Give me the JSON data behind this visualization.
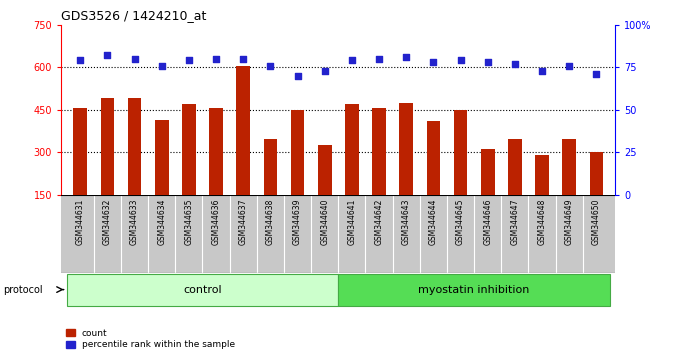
{
  "title": "GDS3526 / 1424210_at",
  "categories": [
    "GSM344631",
    "GSM344632",
    "GSM344633",
    "GSM344634",
    "GSM344635",
    "GSM344636",
    "GSM344637",
    "GSM344638",
    "GSM344639",
    "GSM344640",
    "GSM344641",
    "GSM344642",
    "GSM344643",
    "GSM344644",
    "GSM344645",
    "GSM344646",
    "GSM344647",
    "GSM344648",
    "GSM344649",
    "GSM344650"
  ],
  "bar_values": [
    455,
    490,
    490,
    415,
    470,
    455,
    605,
    345,
    450,
    325,
    470,
    455,
    475,
    410,
    450,
    310,
    345,
    290,
    345,
    300
  ],
  "dot_values": [
    79,
    82,
    80,
    76,
    79,
    80,
    80,
    76,
    70,
    73,
    79,
    80,
    81,
    78,
    79,
    78,
    77,
    73,
    76,
    71
  ],
  "bar_color": "#bb2200",
  "dot_color": "#2222cc",
  "ylim_left": [
    150,
    750
  ],
  "ylim_right": [
    0,
    100
  ],
  "yticks_left": [
    150,
    300,
    450,
    600,
    750
  ],
  "yticks_right": [
    0,
    25,
    50,
    75,
    100
  ],
  "grid_values": [
    300,
    450,
    600
  ],
  "control_count": 10,
  "myostatin_count": 10,
  "control_label": "control",
  "myostatin_label": "myostatin inhibition",
  "protocol_label": "protocol",
  "legend_bar": "count",
  "legend_dot": "percentile rank within the sample",
  "bg_xtick": "#c8c8c8",
  "bg_control": "#ccffcc",
  "bg_myostatin": "#55dd55"
}
